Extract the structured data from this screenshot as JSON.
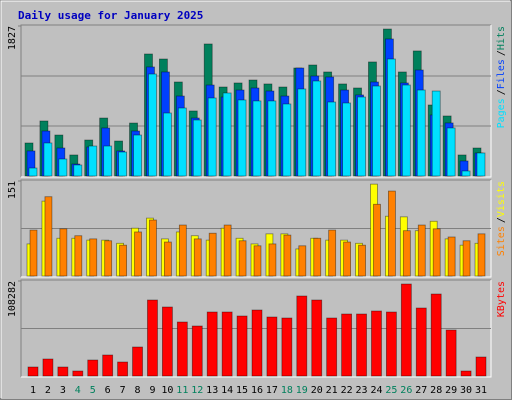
{
  "chart_data": [
    {
      "type": "bar",
      "title": "Daily usage for January 2025",
      "title_color": "#0000c0",
      "legend_separator": "/",
      "ylim": [
        0,
        1827
      ],
      "yticks": [
        1827
      ],
      "series": [
        {
          "name": "Hits",
          "color": "#00805c",
          "values": [
            402,
            670,
            499,
            256,
            438,
            706,
            426,
            645,
            1486,
            1425,
            1145,
            792,
            1608,
            1084,
            1133,
            1169,
            1121,
            1084,
            1315,
            1352,
            1267,
            1121,
            1072,
            1389,
            1790,
            1267,
            1523,
            865,
            731,
            256,
            341
          ]
        },
        {
          "name": "Files",
          "color": "#0040ff",
          "values": [
            305,
            548,
            341,
            146,
            353,
            585,
            305,
            548,
            1328,
            1267,
            974,
            706,
            1108,
            962,
            1047,
            1072,
            1035,
            974,
            1315,
            1218,
            1206,
            1047,
            987,
            1145,
            1669,
            1133,
            1291,
            743,
            646,
            183,
            280
          ]
        },
        {
          "name": "Pages",
          "color": "#00e0ff",
          "values": [
            97,
            402,
            207,
            134,
            365,
            365,
            292,
            499,
            1242,
            767,
            828,
            682,
            950,
            1011,
            926,
            914,
            914,
            877,
            1060,
            1157,
            901,
            889,
            962,
            1096,
            1425,
            1108,
            1047,
            1035,
            585,
            61,
            280
          ]
        }
      ]
    },
    {
      "type": "bar",
      "legend_separator": "/",
      "ylim": [
        0,
        151
      ],
      "yticks": [
        151
      ],
      "series": [
        {
          "name": "Visits",
          "color": "#ffff00",
          "values": [
            51,
            119,
            60,
            60,
            57,
            57,
            52,
            76,
            92,
            59,
            70,
            64,
            57,
            76,
            60,
            51,
            67,
            67,
            43,
            60,
            57,
            57,
            52,
            146,
            95,
            94,
            72,
            87,
            59,
            49,
            52
          ]
        },
        {
          "name": "Sites",
          "color": "#ff8000",
          "values": [
            73,
            126,
            75,
            64,
            59,
            56,
            49,
            70,
            89,
            54,
            81,
            59,
            68,
            81,
            56,
            48,
            51,
            65,
            48,
            60,
            73,
            54,
            49,
            114,
            135,
            72,
            81,
            75,
            62,
            56,
            67
          ]
        }
      ]
    },
    {
      "type": "bar",
      "ylim": [
        0,
        108282
      ],
      "yticks": [
        108282
      ],
      "categories": [
        "1",
        "2",
        "3",
        "4",
        "5",
        "6",
        "7",
        "8",
        "9",
        "10",
        "11",
        "12",
        "13",
        "14",
        "15",
        "16",
        "17",
        "18",
        "19",
        "20",
        "21",
        "22",
        "23",
        "24",
        "25",
        "26",
        "27",
        "28",
        "29",
        "30",
        "31"
      ],
      "category_colors": [
        "#000000",
        "#000000",
        "#000000",
        "#00805c",
        "#00805c",
        "#000000",
        "#000000",
        "#000000",
        "#000000",
        "#000000",
        "#00805c",
        "#00805c",
        "#000000",
        "#000000",
        "#000000",
        "#000000",
        "#000000",
        "#00805c",
        "#00805c",
        "#000000",
        "#000000",
        "#000000",
        "#000000",
        "#000000",
        "#00805c",
        "#00805c",
        "#000000",
        "#000000",
        "#000000",
        "#000000",
        "#000000"
      ],
      "series": [
        {
          "name": "KBytes",
          "color": "#ff0000",
          "values": [
            10258,
            19377,
            10258,
            5699,
            18237,
            23936,
            15957,
            33054,
            86625,
            78646,
            61549,
            56990,
            72947,
            72947,
            68388,
            75227,
            67248,
            66108,
            91184,
            86625,
            66108,
            70668,
            70668,
            74087,
            72947,
            104862,
            77506,
            93464,
            52431,
            5699,
            21656
          ]
        }
      ]
    }
  ]
}
